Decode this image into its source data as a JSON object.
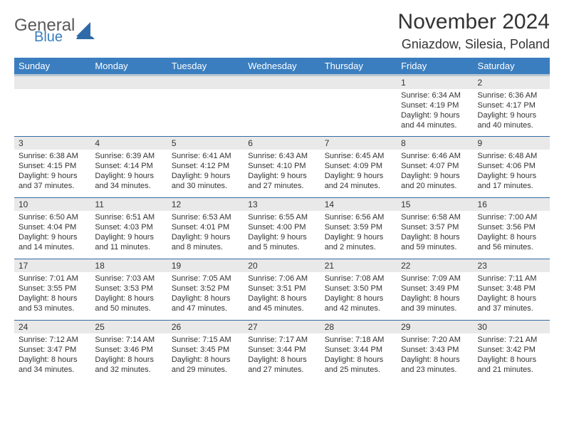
{
  "brand": {
    "general": "General",
    "blue": "Blue"
  },
  "title": "November 2024",
  "location": "Gniazdow, Silesia, Poland",
  "colors": {
    "header_bg": "#3a7ebf",
    "header_underline": "#b9c6d3",
    "row_divider": "#346aa0",
    "daynum_bg": "#e9e9e9",
    "text": "#333333",
    "logo_gray": "#59595b",
    "logo_blue": "#3a7ebf",
    "page_bg": "#ffffff"
  },
  "dow": [
    "Sunday",
    "Monday",
    "Tuesday",
    "Wednesday",
    "Thursday",
    "Friday",
    "Saturday"
  ],
  "weeks": [
    [
      null,
      null,
      null,
      null,
      null,
      {
        "n": "1",
        "sunrise": "6:34 AM",
        "sunset": "4:19 PM",
        "daylight": "9 hours and 44 minutes."
      },
      {
        "n": "2",
        "sunrise": "6:36 AM",
        "sunset": "4:17 PM",
        "daylight": "9 hours and 40 minutes."
      }
    ],
    [
      {
        "n": "3",
        "sunrise": "6:38 AM",
        "sunset": "4:15 PM",
        "daylight": "9 hours and 37 minutes."
      },
      {
        "n": "4",
        "sunrise": "6:39 AM",
        "sunset": "4:14 PM",
        "daylight": "9 hours and 34 minutes."
      },
      {
        "n": "5",
        "sunrise": "6:41 AM",
        "sunset": "4:12 PM",
        "daylight": "9 hours and 30 minutes."
      },
      {
        "n": "6",
        "sunrise": "6:43 AM",
        "sunset": "4:10 PM",
        "daylight": "9 hours and 27 minutes."
      },
      {
        "n": "7",
        "sunrise": "6:45 AM",
        "sunset": "4:09 PM",
        "daylight": "9 hours and 24 minutes."
      },
      {
        "n": "8",
        "sunrise": "6:46 AM",
        "sunset": "4:07 PM",
        "daylight": "9 hours and 20 minutes."
      },
      {
        "n": "9",
        "sunrise": "6:48 AM",
        "sunset": "4:06 PM",
        "daylight": "9 hours and 17 minutes."
      }
    ],
    [
      {
        "n": "10",
        "sunrise": "6:50 AM",
        "sunset": "4:04 PM",
        "daylight": "9 hours and 14 minutes."
      },
      {
        "n": "11",
        "sunrise": "6:51 AM",
        "sunset": "4:03 PM",
        "daylight": "9 hours and 11 minutes."
      },
      {
        "n": "12",
        "sunrise": "6:53 AM",
        "sunset": "4:01 PM",
        "daylight": "9 hours and 8 minutes."
      },
      {
        "n": "13",
        "sunrise": "6:55 AM",
        "sunset": "4:00 PM",
        "daylight": "9 hours and 5 minutes."
      },
      {
        "n": "14",
        "sunrise": "6:56 AM",
        "sunset": "3:59 PM",
        "daylight": "9 hours and 2 minutes."
      },
      {
        "n": "15",
        "sunrise": "6:58 AM",
        "sunset": "3:57 PM",
        "daylight": "8 hours and 59 minutes."
      },
      {
        "n": "16",
        "sunrise": "7:00 AM",
        "sunset": "3:56 PM",
        "daylight": "8 hours and 56 minutes."
      }
    ],
    [
      {
        "n": "17",
        "sunrise": "7:01 AM",
        "sunset": "3:55 PM",
        "daylight": "8 hours and 53 minutes."
      },
      {
        "n": "18",
        "sunrise": "7:03 AM",
        "sunset": "3:53 PM",
        "daylight": "8 hours and 50 minutes."
      },
      {
        "n": "19",
        "sunrise": "7:05 AM",
        "sunset": "3:52 PM",
        "daylight": "8 hours and 47 minutes."
      },
      {
        "n": "20",
        "sunrise": "7:06 AM",
        "sunset": "3:51 PM",
        "daylight": "8 hours and 45 minutes."
      },
      {
        "n": "21",
        "sunrise": "7:08 AM",
        "sunset": "3:50 PM",
        "daylight": "8 hours and 42 minutes."
      },
      {
        "n": "22",
        "sunrise": "7:09 AM",
        "sunset": "3:49 PM",
        "daylight": "8 hours and 39 minutes."
      },
      {
        "n": "23",
        "sunrise": "7:11 AM",
        "sunset": "3:48 PM",
        "daylight": "8 hours and 37 minutes."
      }
    ],
    [
      {
        "n": "24",
        "sunrise": "7:12 AM",
        "sunset": "3:47 PM",
        "daylight": "8 hours and 34 minutes."
      },
      {
        "n": "25",
        "sunrise": "7:14 AM",
        "sunset": "3:46 PM",
        "daylight": "8 hours and 32 minutes."
      },
      {
        "n": "26",
        "sunrise": "7:15 AM",
        "sunset": "3:45 PM",
        "daylight": "8 hours and 29 minutes."
      },
      {
        "n": "27",
        "sunrise": "7:17 AM",
        "sunset": "3:44 PM",
        "daylight": "8 hours and 27 minutes."
      },
      {
        "n": "28",
        "sunrise": "7:18 AM",
        "sunset": "3:44 PM",
        "daylight": "8 hours and 25 minutes."
      },
      {
        "n": "29",
        "sunrise": "7:20 AM",
        "sunset": "3:43 PM",
        "daylight": "8 hours and 23 minutes."
      },
      {
        "n": "30",
        "sunrise": "7:21 AM",
        "sunset": "3:42 PM",
        "daylight": "8 hours and 21 minutes."
      }
    ]
  ],
  "labels": {
    "sunrise": "Sunrise:",
    "sunset": "Sunset:",
    "daylight": "Daylight:"
  }
}
